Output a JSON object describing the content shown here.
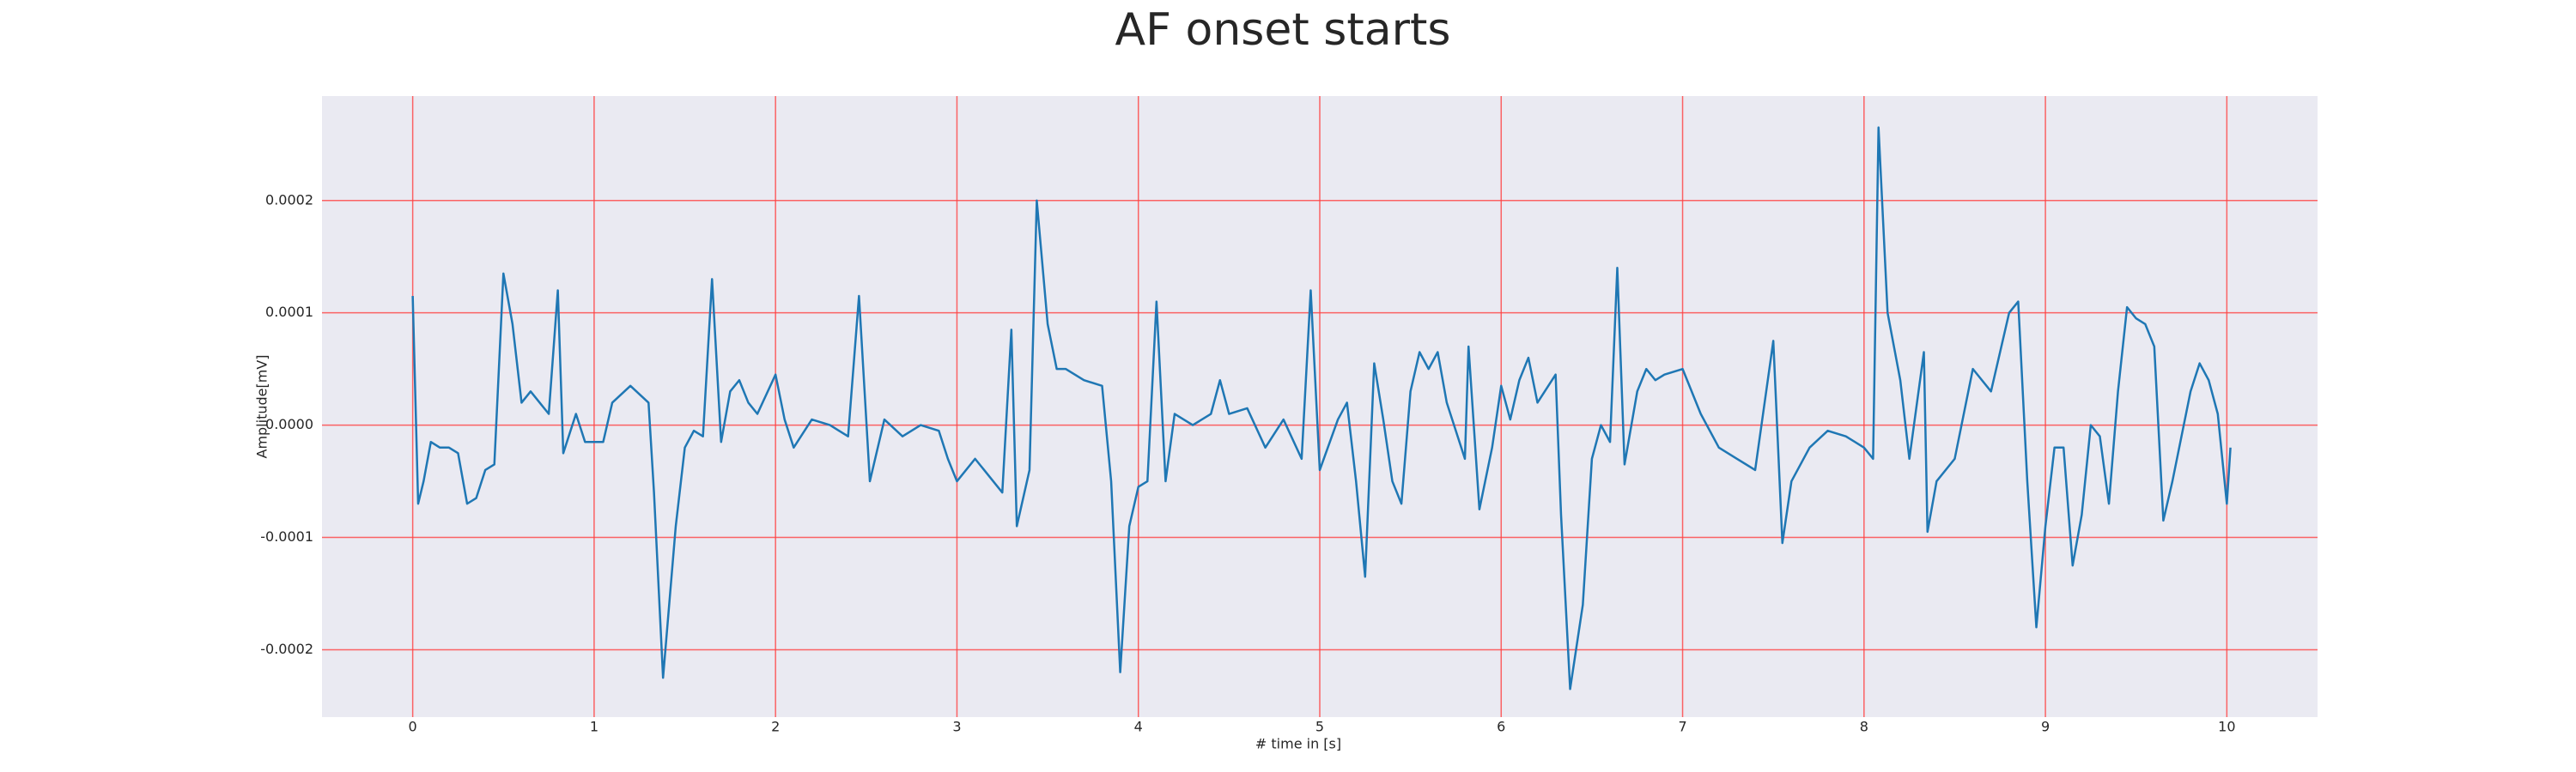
{
  "chart_data": {
    "type": "line",
    "title": "AF onset starts",
    "x_label": "# time in [s]",
    "y_label": "Amplitude[mV]",
    "color": "#1f77b4",
    "grid": true,
    "grid_color": "#ff4040",
    "background": "#eaeaf2",
    "xlim": [
      -0.5,
      10.5
    ],
    "ylim": [
      -0.00026,
      0.000293
    ],
    "xticks": [
      0,
      1,
      2,
      3,
      4,
      5,
      6,
      7,
      8,
      9,
      10
    ],
    "yticks": [
      -0.0002,
      -0.0001,
      {
        "value": 0,
        "label": "0.0000"
      },
      0.0001,
      0.0002
    ],
    "x": [
      0,
      0.03,
      0.06,
      0.1,
      0.15,
      0.2,
      0.25,
      0.3,
      0.35,
      0.4,
      0.45,
      0.5,
      0.55,
      0.6,
      0.65,
      0.7,
      0.75,
      0.8,
      0.83,
      0.9,
      0.95,
      1.0,
      1.05,
      1.1,
      1.2,
      1.3,
      1.33,
      1.38,
      1.45,
      1.5,
      1.55,
      1.6,
      1.65,
      1.7,
      1.75,
      1.8,
      1.85,
      1.9,
      2.0,
      2.05,
      2.1,
      2.2,
      2.3,
      2.35,
      2.4,
      2.46,
      2.52,
      2.6,
      2.7,
      2.8,
      2.9,
      2.95,
      3.0,
      3.1,
      3.15,
      3.2,
      3.25,
      3.3,
      3.33,
      3.4,
      3.44,
      3.5,
      3.55,
      3.6,
      3.7,
      3.8,
      3.85,
      3.9,
      3.95,
      4.0,
      4.05,
      4.1,
      4.15,
      4.2,
      4.3,
      4.4,
      4.45,
      4.5,
      4.6,
      4.7,
      4.8,
      4.9,
      4.95,
      5.0,
      5.1,
      5.15,
      5.2,
      5.25,
      5.3,
      5.35,
      5.4,
      5.45,
      5.5,
      5.55,
      5.6,
      5.65,
      5.7,
      5.8,
      5.82,
      5.88,
      5.95,
      6.0,
      6.05,
      6.1,
      6.15,
      6.2,
      6.3,
      6.33,
      6.38,
      6.45,
      6.5,
      6.55,
      6.6,
      6.64,
      6.68,
      6.75,
      6.8,
      6.85,
      6.9,
      7.0,
      7.1,
      7.2,
      7.3,
      7.4,
      7.5,
      7.55,
      7.6,
      7.7,
      7.8,
      7.9,
      8.0,
      8.05,
      8.08,
      8.13,
      8.2,
      8.25,
      8.33,
      8.35,
      8.4,
      8.5,
      8.6,
      8.7,
      8.8,
      8.85,
      8.9,
      8.95,
      9.0,
      9.05,
      9.1,
      9.15,
      9.2,
      9.25,
      9.3,
      9.35,
      9.4,
      9.45,
      9.5,
      9.55,
      9.6,
      9.65,
      9.7,
      9.8,
      9.85,
      9.9,
      9.95,
      10.0,
      10.02
    ],
    "values": [
      0.000115,
      -7e-05,
      -5e-05,
      -1.5e-05,
      -2e-05,
      -2e-05,
      -2.5e-05,
      -7e-05,
      -6.5e-05,
      -4e-05,
      -3.5e-05,
      0.000135,
      9e-05,
      2e-05,
      3e-05,
      2e-05,
      1e-05,
      0.00012,
      -2.5e-05,
      1e-05,
      -1.5e-05,
      -1.5e-05,
      -1.5e-05,
      2e-05,
      3.5e-05,
      2e-05,
      -6e-05,
      -0.000225,
      -9e-05,
      -2e-05,
      -5e-06,
      -1e-05,
      0.00013,
      -1.5e-05,
      3e-05,
      4e-05,
      2e-05,
      1e-05,
      4.5e-05,
      5e-06,
      -2e-05,
      5e-06,
      0.0,
      -5e-06,
      -1e-05,
      0.000115,
      -5e-05,
      5e-06,
      -1e-05,
      0.0,
      -5e-06,
      -3e-05,
      -5e-05,
      -3e-05,
      -4e-05,
      -5e-05,
      -6e-05,
      8.5e-05,
      -9e-05,
      -4e-05,
      0.0002,
      9e-05,
      5e-05,
      5e-05,
      4e-05,
      3.5e-05,
      -5e-05,
      -0.00022,
      -9e-05,
      -5.5e-05,
      -5e-05,
      0.00011,
      -5e-05,
      1e-05,
      0.0,
      1e-05,
      4e-05,
      1e-05,
      1.5e-05,
      -2e-05,
      5e-06,
      -3e-05,
      0.00012,
      -4e-05,
      5e-06,
      2e-05,
      -5e-05,
      -0.000135,
      5.5e-05,
      5e-06,
      -5e-05,
      -7e-05,
      3e-05,
      6.5e-05,
      5e-05,
      6.5e-05,
      2e-05,
      -3e-05,
      7e-05,
      -7.5e-05,
      -2e-05,
      3.5e-05,
      5e-06,
      4e-05,
      6e-05,
      2e-05,
      4.5e-05,
      -8e-05,
      -0.000235,
      -0.00016,
      -3e-05,
      0.0,
      -1.5e-05,
      0.00014,
      -3.5e-05,
      3e-05,
      5e-05,
      4e-05,
      4.5e-05,
      5e-05,
      1e-05,
      -2e-05,
      -3e-05,
      -4e-05,
      7.5e-05,
      -0.000105,
      -5e-05,
      -2e-05,
      -5e-06,
      -1e-05,
      -2e-05,
      -3e-05,
      0.000265,
      0.0001,
      4e-05,
      -3e-05,
      6.5e-05,
      -9.5e-05,
      -5e-05,
      -3e-05,
      5e-05,
      3e-05,
      0.0001,
      0.00011,
      -5e-05,
      -0.00018,
      -9e-05,
      -2e-05,
      -2e-05,
      -0.000125,
      -8e-05,
      0.0,
      -1e-05,
      -7e-05,
      3e-05,
      0.000105,
      9.5e-05,
      9e-05,
      7e-05,
      -8.5e-05,
      -5e-05,
      3e-05,
      5.5e-05,
      4e-05,
      1e-05,
      -7e-05,
      -2e-05
    ]
  }
}
